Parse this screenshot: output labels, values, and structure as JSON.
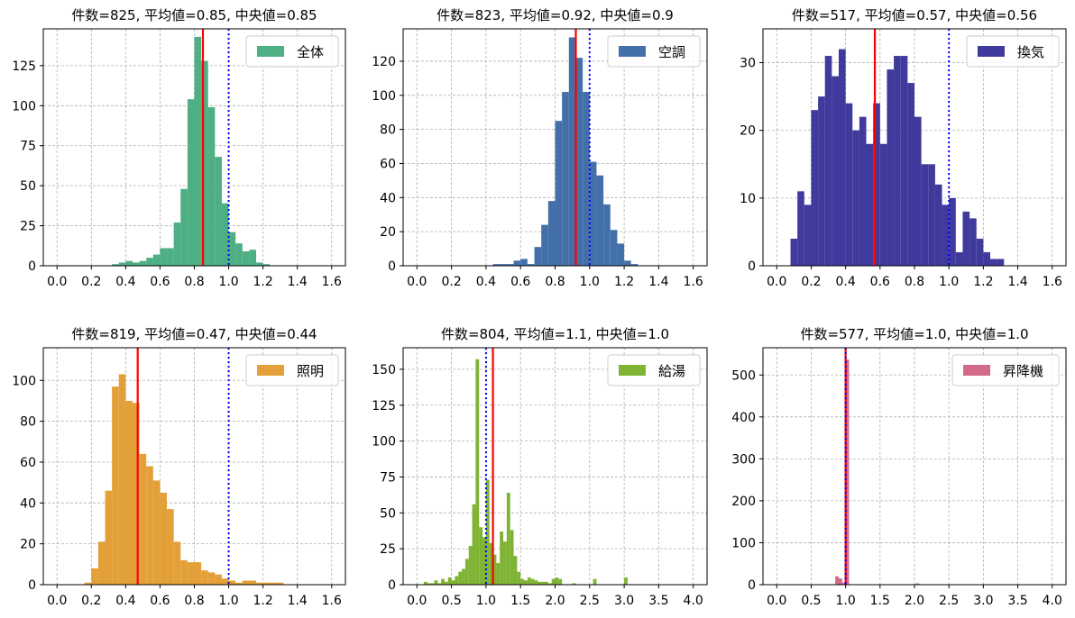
{
  "chart_data": [
    {
      "type": "bar",
      "title": "件数=825, 平均値=0.85, 中央値=0.85",
      "legend": "全体",
      "color": "#4daf83",
      "xlim": [
        -0.08,
        1.68
      ],
      "ylim": [
        0,
        148
      ],
      "xticks": [
        "0.0",
        "0.2",
        "0.4",
        "0.6",
        "0.8",
        "1.0",
        "1.2",
        "1.4",
        "1.6"
      ],
      "yticks": [
        "0",
        "25",
        "50",
        "75",
        "100",
        "125"
      ],
      "bin_edges": [
        0.32,
        0.36,
        0.4,
        0.44,
        0.48,
        0.52,
        0.56,
        0.6,
        0.64,
        0.68,
        0.72,
        0.76,
        0.8,
        0.84,
        0.88,
        0.92,
        0.96,
        1.0,
        1.04,
        1.08,
        1.12,
        1.16,
        1.2,
        1.24
      ],
      "counts": [
        1,
        2,
        3,
        2,
        3,
        5,
        7,
        11,
        11,
        27,
        48,
        104,
        143,
        128,
        99,
        68,
        39,
        21,
        14,
        9,
        10,
        2,
        1
      ],
      "mean": 0.85,
      "reference": 1.0
    },
    {
      "type": "bar",
      "title": "件数=823, 平均値=0.92, 中央値=0.9",
      "legend": "空調",
      "color": "#4470aa",
      "xlim": [
        -0.08,
        1.68
      ],
      "ylim": [
        0,
        139
      ],
      "xticks": [
        "0.0",
        "0.2",
        "0.4",
        "0.6",
        "0.8",
        "1.0",
        "1.2",
        "1.4",
        "1.6"
      ],
      "yticks": [
        "0",
        "20",
        "40",
        "60",
        "80",
        "100",
        "120"
      ],
      "bin_edges": [
        0.44,
        0.48,
        0.52,
        0.56,
        0.6,
        0.64,
        0.68,
        0.72,
        0.76,
        0.8,
        0.84,
        0.88,
        0.92,
        0.96,
        1.0,
        1.04,
        1.08,
        1.12,
        1.16,
        1.2,
        1.24,
        1.28
      ],
      "counts": [
        1,
        1,
        1,
        3,
        4,
        1,
        11,
        24,
        38,
        85,
        102,
        134,
        122,
        102,
        61,
        53,
        36,
        21,
        13,
        3,
        1
      ],
      "mean": 0.92,
      "reference": 1.0
    },
    {
      "type": "bar",
      "title": "件数=517, 平均値=0.57, 中央値=0.56",
      "legend": "換気",
      "color": "#3f3a9c",
      "xlim": [
        -0.08,
        1.68
      ],
      "ylim": [
        0,
        35
      ],
      "xticks": [
        "0.0",
        "0.2",
        "0.4",
        "0.6",
        "0.8",
        "1.0",
        "1.2",
        "1.4",
        "1.6"
      ],
      "yticks": [
        "0",
        "10",
        "20",
        "30"
      ],
      "bin_edges": [
        0.08,
        0.12,
        0.16,
        0.2,
        0.24,
        0.28,
        0.32,
        0.36,
        0.4,
        0.44,
        0.48,
        0.52,
        0.56,
        0.6,
        0.64,
        0.68,
        0.72,
        0.76,
        0.8,
        0.84,
        0.88,
        0.92,
        0.96,
        1.0,
        1.04,
        1.08,
        1.12,
        1.16,
        1.2,
        1.24,
        1.28,
        1.32
      ],
      "counts": [
        4,
        11,
        9,
        23,
        25,
        31,
        28,
        32,
        24,
        20,
        22,
        18,
        24,
        18,
        29,
        31,
        31,
        27,
        22,
        15,
        15,
        12,
        9,
        10,
        2,
        8,
        7,
        4,
        2,
        1,
        1
      ],
      "mean": 0.57,
      "reference": 1.0
    },
    {
      "type": "bar",
      "title": "件数=819, 平均値=0.47, 中央値=0.44",
      "legend": "照明",
      "color": "#e3a038",
      "xlim": [
        -0.08,
        1.68
      ],
      "ylim": [
        0,
        116
      ],
      "xticks": [
        "0.0",
        "0.2",
        "0.4",
        "0.6",
        "0.8",
        "1.0",
        "1.2",
        "1.4",
        "1.6"
      ],
      "yticks": [
        "0",
        "20",
        "40",
        "60",
        "80",
        "100"
      ],
      "bin_edges": [
        0.16,
        0.2,
        0.24,
        0.28,
        0.32,
        0.36,
        0.4,
        0.44,
        0.48,
        0.52,
        0.56,
        0.6,
        0.64,
        0.68,
        0.72,
        0.76,
        0.8,
        0.84,
        0.88,
        0.92,
        0.96,
        1.0,
        1.04,
        1.08,
        1.12,
        1.16,
        1.2,
        1.24,
        1.28,
        1.32
      ],
      "counts": [
        1,
        8,
        21,
        46,
        97,
        103,
        90,
        89,
        64,
        58,
        51,
        45,
        37,
        21,
        12,
        11,
        11,
        7,
        6,
        5,
        3,
        2,
        1,
        2,
        2,
        1,
        1,
        1,
        1
      ],
      "mean": 0.47,
      "reference": 1.0
    },
    {
      "type": "bar",
      "title": "件数=804, 平均値=1.1, 中央値=1.0",
      "legend": "給湯",
      "color": "#7fb332",
      "xlim": [
        -0.2,
        4.2
      ],
      "ylim": [
        0,
        165
      ],
      "xticks": [
        "0.0",
        "0.5",
        "1.0",
        "1.5",
        "2.0",
        "2.5",
        "3.0",
        "3.5",
        "4.0"
      ],
      "yticks": [
        "0",
        "25",
        "50",
        "75",
        "100",
        "125",
        "150"
      ],
      "bin_edges": [
        0.1,
        0.15,
        0.2,
        0.25,
        0.3,
        0.35,
        0.4,
        0.45,
        0.5,
        0.55,
        0.6,
        0.65,
        0.7,
        0.75,
        0.8,
        0.85,
        0.9,
        0.95,
        1.0,
        1.05,
        1.1,
        1.15,
        1.2,
        1.25,
        1.3,
        1.35,
        1.4,
        1.45,
        1.5,
        1.55,
        1.6,
        1.65,
        1.7,
        1.75,
        1.8,
        1.85,
        1.9,
        1.95,
        2.0,
        2.05,
        2.1
      ],
      "counts": [
        2,
        1,
        1,
        3,
        1,
        4,
        2,
        5,
        3,
        6,
        9,
        11,
        18,
        27,
        56,
        157,
        40,
        33,
        73,
        29,
        21,
        15,
        37,
        30,
        64,
        38,
        20,
        9,
        4,
        3,
        5,
        4,
        3,
        2,
        2,
        2,
        1,
        4,
        5,
        4
      ],
      "extra_bars": [
        [
          2.25,
          1
        ],
        [
          2.55,
          4
        ],
        [
          3.0,
          5
        ]
      ],
      "mean": 1.1,
      "reference": 1.0
    },
    {
      "type": "bar",
      "title": "件数=577, 平均値=1.0, 中央値=1.0",
      "legend": "昇降機",
      "color": "#d46a8a",
      "xlim": [
        -0.2,
        4.2
      ],
      "ylim": [
        0,
        565
      ],
      "xticks": [
        "0.0",
        "0.5",
        "1.0",
        "1.5",
        "2.0",
        "2.5",
        "3.0",
        "3.5",
        "4.0"
      ],
      "yticks": [
        "0",
        "100",
        "200",
        "300",
        "400",
        "500"
      ],
      "bin_edges": [
        0.85,
        0.9,
        0.95,
        1.0,
        1.05,
        1.1
      ],
      "counts": [
        20,
        15,
        5,
        537,
        1
      ],
      "extra_bars": [
        [
          2.02,
          3
        ]
      ],
      "mean": 1.0,
      "reference": 1.0
    }
  ]
}
